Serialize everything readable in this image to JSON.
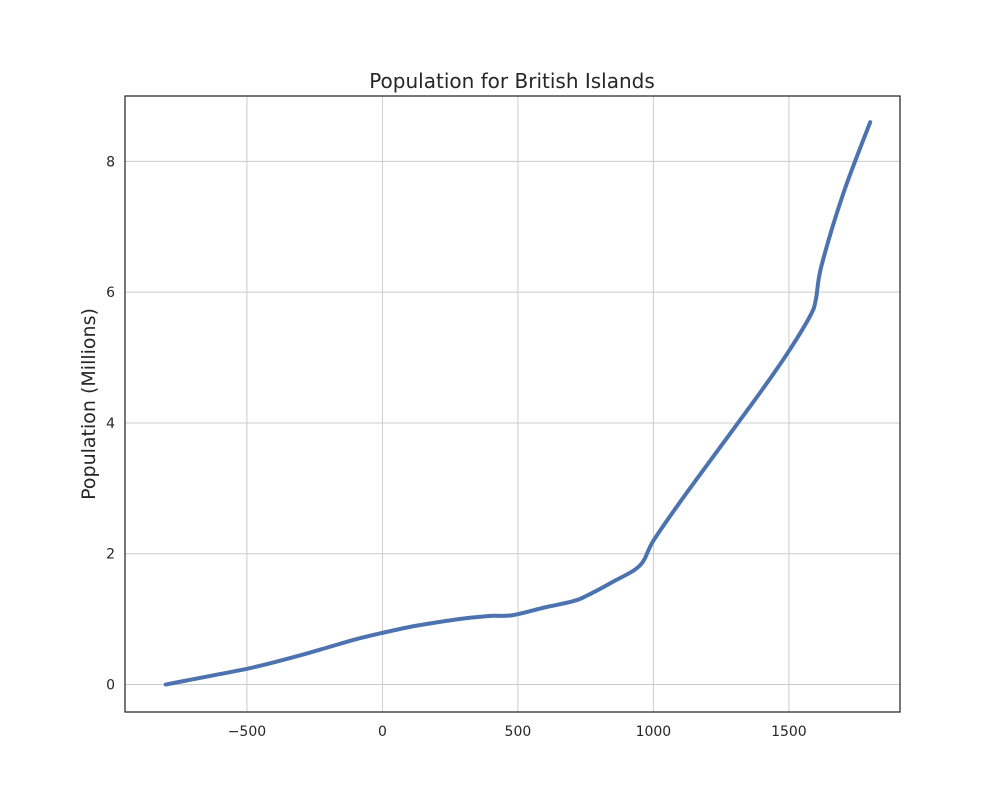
{
  "chart_data": {
    "type": "line",
    "title": "Population for British Islands",
    "xlabel": "",
    "ylabel": "Population (Millions)",
    "xlim": [
      -950,
      1910
    ],
    "ylim": [
      -0.42,
      9.0
    ],
    "x_ticks": [
      -500,
      0,
      500,
      1000,
      1500
    ],
    "x_tick_labels": [
      "−500",
      "0",
      "500",
      "1000",
      "1500"
    ],
    "y_ticks": [
      0,
      2,
      4,
      6,
      8
    ],
    "y_tick_labels": [
      "0",
      "2",
      "4",
      "6",
      "8"
    ],
    "grid": true,
    "legend": "none",
    "series": [
      {
        "color": "#4c72b0",
        "x": [
          -800,
          -700,
          -600,
          -500,
          -400,
          -300,
          -200,
          -100,
          0,
          100,
          200,
          300,
          400,
          480,
          600,
          700,
          750,
          850,
          950,
          1000,
          1100,
          1250,
          1400,
          1500,
          1580,
          1600,
          1620,
          1700,
          1800
        ],
        "y": [
          0.0,
          0.08,
          0.16,
          0.24,
          0.34,
          0.45,
          0.57,
          0.69,
          0.79,
          0.88,
          0.95,
          1.01,
          1.05,
          1.06,
          1.18,
          1.27,
          1.35,
          1.57,
          1.82,
          2.2,
          2.8,
          3.65,
          4.5,
          5.1,
          5.65,
          5.9,
          6.4,
          7.5,
          8.6
        ]
      }
    ]
  }
}
